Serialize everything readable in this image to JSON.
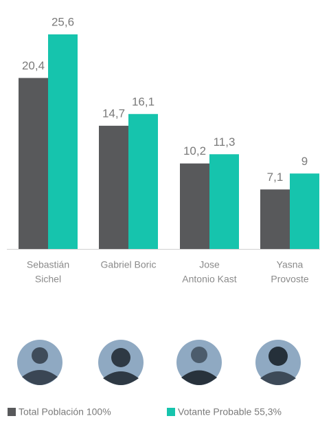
{
  "chart_data": {
    "type": "bar",
    "categories": [
      [
        "Sebastián",
        "Sichel"
      ],
      [
        "Gabriel Boric"
      ],
      [
        "Jose",
        "Antonio Kast"
      ],
      [
        "Yasna",
        "Provoste"
      ]
    ],
    "series": [
      {
        "name": "Total Población 100%",
        "color": "#58595b",
        "values": [
          20.4,
          14.7,
          10.2,
          7.1
        ],
        "value_labels": [
          "20,4",
          "14,7",
          "10,2",
          "7,1"
        ]
      },
      {
        "name": "Votante Probable 55,3%",
        "color": "#16c4ad",
        "values": [
          25.6,
          16.1,
          11.3,
          9
        ],
        "value_labels": [
          "25,6",
          "16,1",
          "11,3",
          "9"
        ]
      }
    ]
  }
}
